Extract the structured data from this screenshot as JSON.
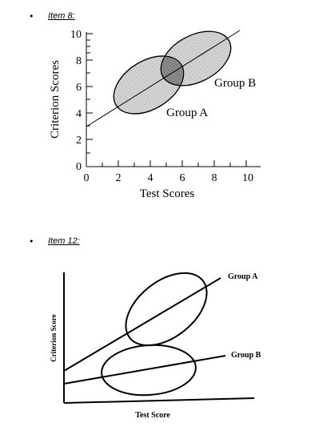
{
  "item8": {
    "bullet": "•",
    "label": "Item 8:",
    "ylabel": "Criterion Scores",
    "xlabel": "Test Scores",
    "y_ticks": [
      "10",
      "8",
      "6",
      "4",
      "2",
      "0"
    ],
    "x_ticks": [
      "0",
      "2",
      "4",
      "6",
      "8",
      "10"
    ],
    "group_a": "Group A",
    "group_b": "Group B"
  },
  "item12": {
    "bullet": "•",
    "label": "Item 12:",
    "ylabel": "Criterion Score",
    "xlabel": "Test Score",
    "group_a": "Group A",
    "group_b": "Group B"
  },
  "colors": {
    "ink": "#000000",
    "shade": "#c8c8c8",
    "overlap": "#8a8a8a"
  }
}
